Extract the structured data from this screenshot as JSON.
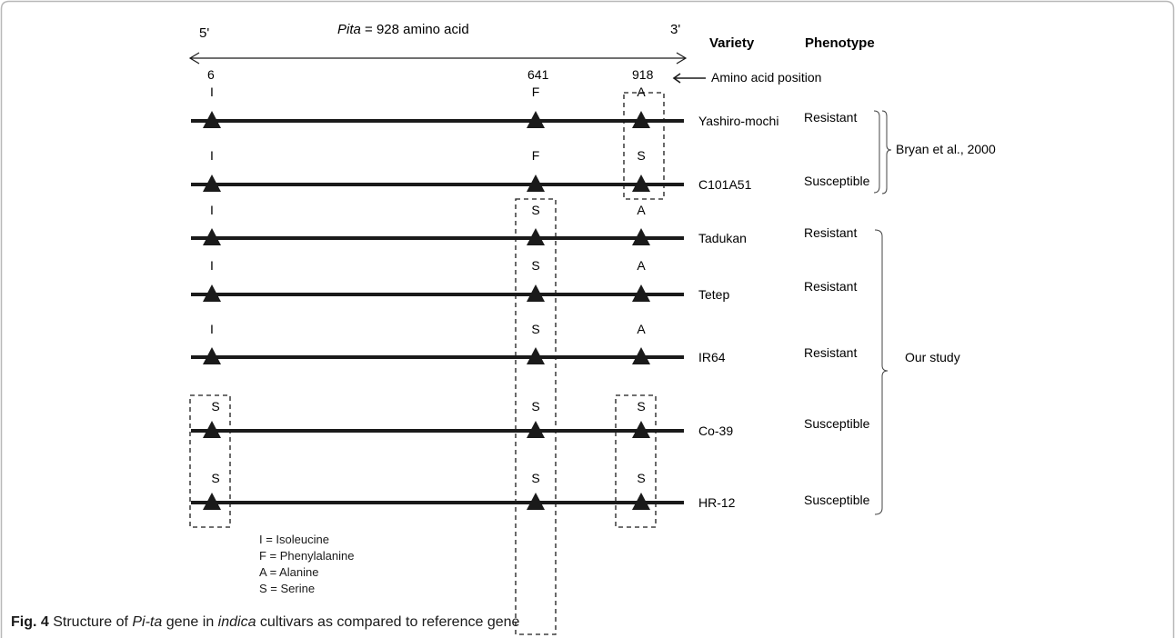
{
  "header": {
    "five_prime": "5'",
    "three_prime": "3'",
    "gene_name": "Pita",
    "gene_length": " = 928 amino acid",
    "variety_heading": "Variety",
    "phenotype_heading": "Phenotype",
    "amino_acid_position_label": "Amino acid position"
  },
  "positions": [
    "6",
    "641",
    "918"
  ],
  "varieties": [
    {
      "name": "Yashiro-mochi",
      "phenotype": "Resistant",
      "residues": [
        "I",
        "F",
        "A"
      ]
    },
    {
      "name": "C101A51",
      "phenotype": "Susceptible",
      "residues": [
        "I",
        "F",
        "S"
      ]
    },
    {
      "name": "Tadukan",
      "phenotype": "Resistant",
      "residues": [
        "I",
        "S",
        "A"
      ]
    },
    {
      "name": "Tetep",
      "phenotype": "Resistant",
      "residues": [
        "I",
        "S",
        "A"
      ]
    },
    {
      "name": "IR64",
      "phenotype": "Resistant",
      "residues": [
        "I",
        "S",
        "A"
      ]
    },
    {
      "name": "Co-39",
      "phenotype": "Susceptible",
      "residues": [
        "S",
        "S",
        "S"
      ]
    },
    {
      "name": "HR-12",
      "phenotype": "Susceptible",
      "residues": [
        "S",
        "S",
        "S"
      ]
    }
  ],
  "groups": {
    "reference": "Bryan et al., 2000",
    "study": "Our study"
  },
  "legend": [
    "I  = Isoleucine",
    "F = Phenylalanine",
    "A = Alanine",
    "S  = Serine"
  ],
  "caption": {
    "label": "Fig. 4",
    "text_1": " Structure of ",
    "gene": "Pi-ta",
    "text_2": " gene in ",
    "group": "indica",
    "text_3": " cultivars as compared to reference gene"
  }
}
